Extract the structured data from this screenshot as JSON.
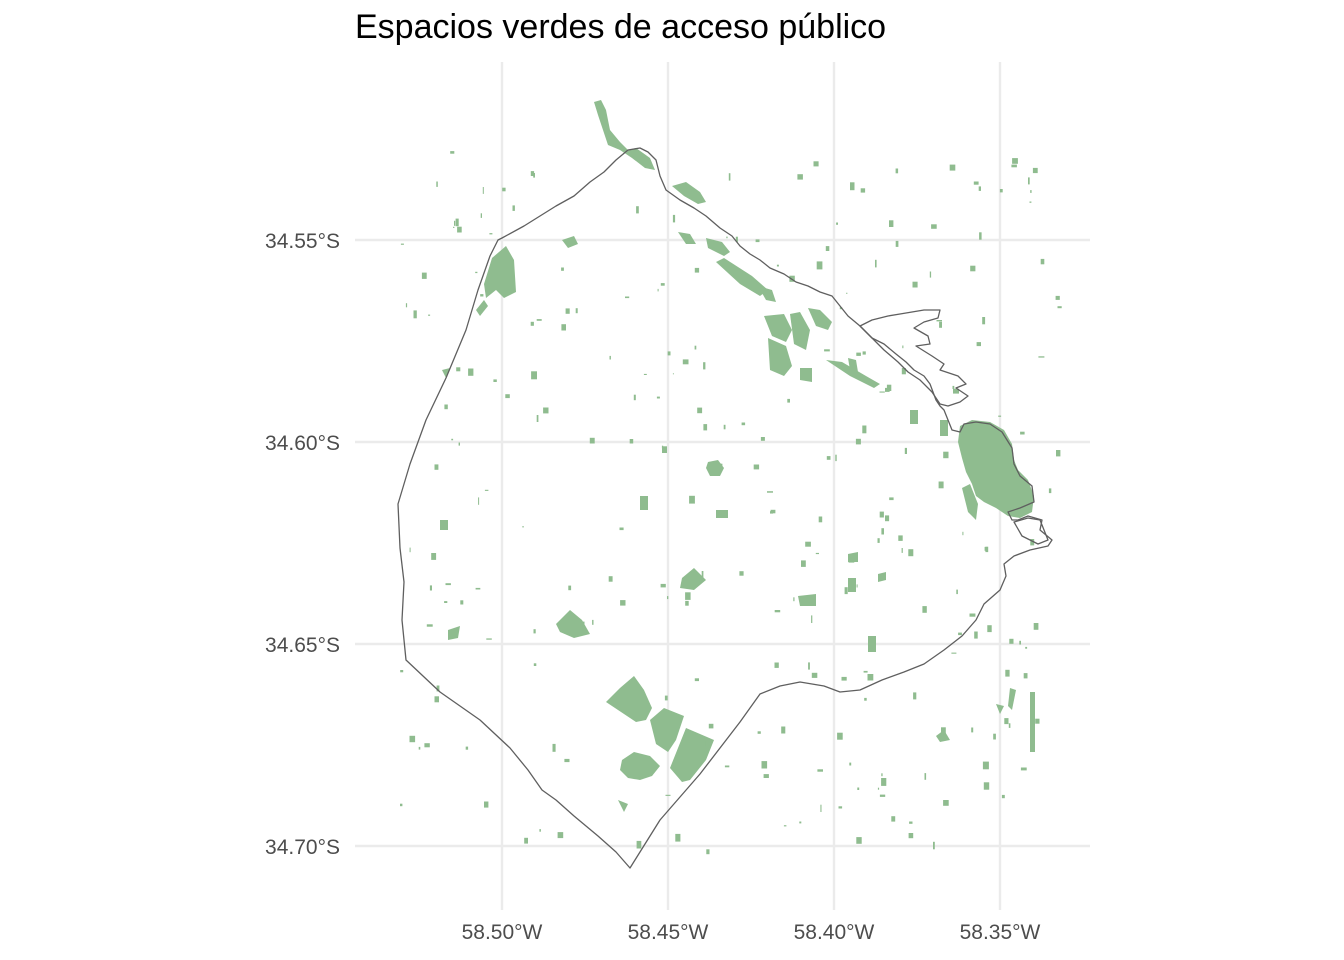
{
  "title": "Espacios verdes de acceso público",
  "map": {
    "x_tick_labels": [
      "58.50°W",
      "58.45°W",
      "58.40°W",
      "58.35°W"
    ],
    "y_tick_labels": [
      "34.55°S",
      "34.60°S",
      "34.65°S",
      "34.70°S"
    ],
    "green_color": "#8fbc8f",
    "boundary_color": "#5f5f5f",
    "grid": true
  }
}
